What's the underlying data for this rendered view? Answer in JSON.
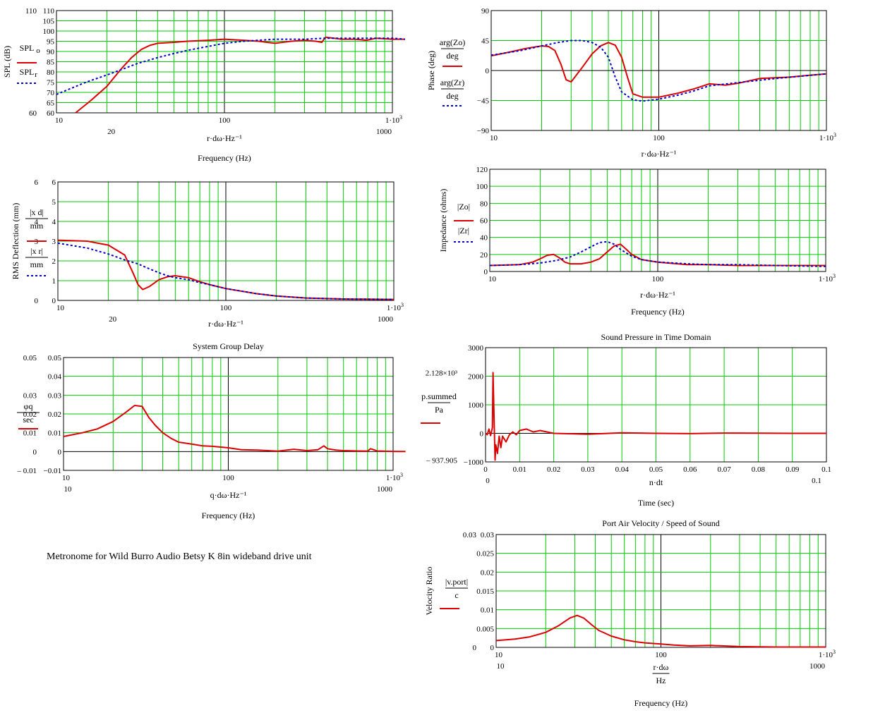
{
  "caption": "Metronome for Wild Burro Audio Betsy K 8in wideband drive unit",
  "colors": {
    "grid": "#00cc00",
    "axis": "#000000",
    "primary": "#dd0000",
    "secondary": "#0000cc",
    "background": "#ffffff"
  },
  "chart_data": [
    {
      "id": "spl",
      "type": "line",
      "title": "",
      "xlabel": "Frequency (Hz)",
      "ylabel": "SPL (dB)",
      "x_expr": "r·dω·Hz⁻¹",
      "xscale": "log",
      "xlim": [
        10,
        1000
      ],
      "ylim": [
        60,
        110
      ],
      "x_ticks": [
        "10",
        "100",
        "1·10³"
      ],
      "x_extra_ticks": [
        "20",
        "1000"
      ],
      "y_ticks": [
        "60",
        "65",
        "70",
        "75",
        "80",
        "85",
        "90",
        "95",
        "100",
        "105",
        "110"
      ],
      "y_extra_ticks": [
        "110",
        "60"
      ],
      "legend": [
        "SPL_o_r",
        "SPL_r"
      ],
      "series": [
        {
          "name": "SPL_o_r",
          "style": "solid",
          "x": [
            13,
            16,
            20,
            24,
            28,
            32,
            36,
            40,
            50,
            60,
            80,
            100,
            130,
            160,
            200,
            250,
            300,
            350,
            380,
            400,
            450,
            500,
            600,
            700,
            800,
            1000,
            1200
          ],
          "y": [
            60,
            66,
            73,
            81,
            87,
            91,
            93,
            94,
            94.5,
            95,
            95.5,
            96,
            95.5,
            95,
            94,
            95,
            95.5,
            95,
            94.5,
            97,
            96.5,
            96,
            96,
            95.5,
            96.5,
            96,
            96
          ]
        },
        {
          "name": "SPL_r",
          "style": "dotted",
          "x": [
            10,
            15,
            20,
            25,
            30,
            40,
            50,
            60,
            80,
            100,
            130,
            160,
            200,
            300,
            400,
            500,
            700,
            1000,
            1200
          ],
          "y": [
            69,
            75,
            78.5,
            81.5,
            84,
            87,
            89,
            90.5,
            92.5,
            94,
            95,
            95.5,
            96,
            96,
            96.5,
            96.5,
            96.5,
            96.5,
            96
          ]
        }
      ]
    },
    {
      "id": "phase",
      "type": "line",
      "title": "",
      "xlabel": "",
      "ylabel": "Phase (deg)",
      "x_expr": "r·dω·Hz⁻¹",
      "xscale": "log",
      "xlim": [
        10,
        1000
      ],
      "ylim": [
        -90,
        90
      ],
      "x_ticks": [
        "10",
        "100",
        "1·10³"
      ],
      "y_ticks": [
        "-90",
        "-45",
        "0",
        "45",
        "90"
      ],
      "legend": [
        "arg(Z_o_r)/deg",
        "arg(Z_r)/deg"
      ],
      "series": [
        {
          "name": "arg(Z_o_r)/deg",
          "style": "solid",
          "x": [
            10,
            13,
            16,
            20,
            22,
            24,
            26,
            28,
            30,
            35,
            40,
            45,
            50,
            55,
            60,
            65,
            70,
            80,
            100,
            130,
            160,
            200,
            250,
            300,
            400,
            600,
            800,
            1000
          ],
          "y": [
            22,
            28,
            33,
            37,
            36,
            30,
            10,
            -14,
            -17,
            5,
            25,
            37,
            42,
            38,
            20,
            -10,
            -35,
            -40,
            -40,
            -34,
            -28,
            -20,
            -22,
            -19,
            -12,
            -10,
            -7,
            -5
          ]
        },
        {
          "name": "arg(Z_r)/deg",
          "style": "dotted",
          "x": [
            10,
            15,
            20,
            25,
            30,
            35,
            40,
            45,
            50,
            55,
            60,
            70,
            80,
            100,
            130,
            160,
            200,
            300,
            500,
            1000
          ],
          "y": [
            23,
            30,
            37,
            42,
            45,
            45,
            42,
            35,
            20,
            -10,
            -32,
            -44,
            -46,
            -43,
            -37,
            -31,
            -23,
            -18,
            -12,
            -5
          ]
        }
      ]
    },
    {
      "id": "deflection",
      "type": "line",
      "title": "",
      "xlabel": "",
      "ylabel": "RMS Deflection (mm)",
      "x_expr": "r·dω·Hz⁻¹",
      "xscale": "log",
      "xlim": [
        10,
        1000
      ],
      "ylim": [
        0,
        6
      ],
      "x_ticks": [
        "10",
        "100",
        "1·10³"
      ],
      "x_extra_ticks": [
        "20",
        "1000"
      ],
      "y_ticks": [
        "0",
        "1",
        "2",
        "3",
        "4",
        "5",
        "6"
      ],
      "y_extra_ticks": [
        "6",
        "4",
        "3",
        "0"
      ],
      "legend": [
        "|x_d_r|/mm",
        "|x_r|/mm"
      ],
      "series": [
        {
          "name": "|x_d_r|/mm",
          "style": "solid",
          "x": [
            10,
            15,
            20,
            25,
            28,
            30,
            32,
            35,
            40,
            45,
            50,
            60,
            70,
            80,
            100,
            150,
            200,
            300,
            500,
            1000
          ],
          "y": [
            3.05,
            3.0,
            2.8,
            2.3,
            1.4,
            0.8,
            0.55,
            0.7,
            1.05,
            1.2,
            1.25,
            1.15,
            0.95,
            0.8,
            0.6,
            0.35,
            0.22,
            0.12,
            0.07,
            0.05
          ]
        },
        {
          "name": "|x_r|/mm",
          "style": "dotted",
          "x": [
            10,
            15,
            20,
            25,
            30,
            35,
            40,
            45,
            50,
            60,
            70,
            80,
            100,
            150,
            200,
            300,
            500,
            1000
          ],
          "y": [
            2.9,
            2.65,
            2.35,
            2.05,
            1.85,
            1.6,
            1.4,
            1.25,
            1.15,
            1.05,
            0.9,
            0.8,
            0.6,
            0.35,
            0.22,
            0.12,
            0.07,
            0.05
          ]
        }
      ]
    },
    {
      "id": "impedance",
      "type": "line",
      "title": "",
      "xlabel": "Frequency (Hz)",
      "ylabel": "Impedance (ohms)",
      "x_expr": "r·dω·Hz⁻¹",
      "xscale": "log",
      "xlim": [
        10,
        1000
      ],
      "ylim": [
        0,
        120
      ],
      "x_ticks": [
        "10",
        "100",
        "1·10³"
      ],
      "y_ticks": [
        "0",
        "20",
        "40",
        "60",
        "80",
        "100",
        "120"
      ],
      "legend": [
        "|Z_o_r|",
        "|Z_r|"
      ],
      "series": [
        {
          "name": "|Z_o_r|",
          "style": "solid",
          "x": [
            10,
            15,
            18,
            20,
            22,
            24,
            26,
            28,
            30,
            35,
            40,
            45,
            50,
            55,
            60,
            65,
            70,
            80,
            100,
            150,
            200,
            300,
            500,
            1000
          ],
          "y": [
            7,
            8,
            11,
            15,
            19,
            20,
            16,
            11,
            9,
            9,
            11,
            15,
            23,
            30,
            32,
            26,
            20,
            14,
            11,
            8,
            8,
            7,
            7,
            7
          ]
        },
        {
          "name": "|Z_r|",
          "style": "dotted",
          "x": [
            10,
            15,
            20,
            25,
            30,
            35,
            40,
            45,
            50,
            55,
            60,
            70,
            80,
            100,
            150,
            200,
            300,
            500,
            1000
          ],
          "y": [
            7,
            8,
            10,
            13,
            17,
            23,
            29,
            34,
            35,
            32,
            26,
            18,
            14,
            11,
            9,
            8,
            8,
            7,
            6
          ]
        }
      ]
    },
    {
      "id": "group-delay",
      "type": "line",
      "title": "System Group Delay",
      "xlabel": "Frequency (Hz)",
      "ylabel": "",
      "x_expr": "q·dω·Hz⁻¹",
      "xscale": "log",
      "xlim": [
        10,
        1000
      ],
      "ylim": [
        -0.01,
        0.05
      ],
      "x_ticks": [
        "10",
        "100",
        "1·10³"
      ],
      "x_extra_ticks": [
        "10",
        "1000"
      ],
      "y_ticks": [
        "-0.01",
        "0",
        "0.01",
        "0.02",
        "0.03",
        "0.04",
        "0.05"
      ],
      "y_extra_ticks": [
        "0.05",
        "0.03",
        "0.02",
        "0.01",
        "0",
        "– 0.01"
      ],
      "legend": [
        "φ_q/sec"
      ],
      "series": [
        {
          "name": "φ_q/sec",
          "style": "solid",
          "x": [
            10,
            13,
            16,
            20,
            24,
            27,
            30,
            33,
            36,
            40,
            45,
            50,
            60,
            70,
            80,
            100,
            120,
            150,
            200,
            250,
            300,
            350,
            380,
            400,
            450,
            500,
            600,
            700,
            730,
            800,
            1000,
            1200
          ],
          "y": [
            0.008,
            0.01,
            0.012,
            0.016,
            0.021,
            0.0245,
            0.024,
            0.018,
            0.014,
            0.01,
            0.007,
            0.005,
            0.004,
            0.003,
            0.0028,
            0.002,
            0.001,
            0.0008,
            0.0002,
            0.0012,
            0.0005,
            0.001,
            0.003,
            0.0015,
            0.0008,
            0.0005,
            0.0003,
            0.0002,
            0.0015,
            0.0003,
            0.0001,
            0
          ]
        }
      ]
    },
    {
      "id": "time-domain",
      "type": "line",
      "title": "Sound Pressure in Time Domain",
      "xlabel": "Time (sec)",
      "ylabel": "",
      "x_expr": "n·dt",
      "xscale": "linear",
      "xlim": [
        0,
        0.1
      ],
      "ylim": [
        -1000,
        3000
      ],
      "x_ticks": [
        "0",
        "0.01",
        "0.02",
        "0.03",
        "0.04",
        "0.05",
        "0.06",
        "0.07",
        "0.08",
        "0.09",
        "0.1"
      ],
      "x_extra_ticks": [
        "0",
        "0.1"
      ],
      "y_ticks": [
        "-1000",
        "0",
        "1000",
        "2000",
        "3000"
      ],
      "y_extra_ticks": [
        "2.128×10³",
        "– 937.905"
      ],
      "legend": [
        "p_summed_n/Pa"
      ],
      "series": [
        {
          "name": "p_summed_n/Pa",
          "style": "solid",
          "x": [
            0,
            0.0005,
            0.001,
            0.0015,
            0.002,
            0.0022,
            0.0025,
            0.0028,
            0.003,
            0.0035,
            0.004,
            0.0045,
            0.005,
            0.006,
            0.007,
            0.008,
            0.009,
            0.01,
            0.012,
            0.014,
            0.016,
            0.02,
            0.03,
            0.04,
            0.05,
            0.06,
            0.07,
            0.08,
            0.09,
            0.1
          ],
          "y": [
            0,
            -50,
            150,
            -80,
            200,
            2128,
            500,
            -938,
            -400,
            -700,
            -100,
            -500,
            -100,
            -300,
            -50,
            50,
            -50,
            100,
            150,
            50,
            100,
            0,
            -30,
            20,
            0,
            -10,
            10,
            5,
            0,
            0
          ]
        }
      ]
    },
    {
      "id": "port-velocity",
      "type": "line",
      "title": "Port Air Velocity / Speed of Sound",
      "xlabel": "Frequency (Hz)",
      "ylabel": "Velocity Ratio",
      "x_expr": "r·dω / Hz",
      "xscale": "log",
      "xlim": [
        10,
        1000
      ],
      "ylim": [
        0,
        0.03
      ],
      "x_ticks": [
        "10",
        "100",
        "1·10³"
      ],
      "x_extra_ticks": [
        "10",
        "1000"
      ],
      "y_ticks": [
        "0",
        "0.005",
        "0.01",
        "0.015",
        "0.02",
        "0.025",
        "0.03"
      ],
      "y_extra_ticks": [
        "0.03",
        "0"
      ],
      "legend": [
        "|v_port_r|/c"
      ],
      "series": [
        {
          "name": "|v_port_r|/c",
          "style": "solid",
          "x": [
            10,
            13,
            16,
            20,
            24,
            28,
            31,
            34,
            38,
            42,
            50,
            60,
            70,
            80,
            100,
            120,
            150,
            200,
            300,
            500,
            1000
          ],
          "y": [
            0.0018,
            0.0022,
            0.0028,
            0.004,
            0.0058,
            0.0078,
            0.0085,
            0.0078,
            0.006,
            0.0045,
            0.003,
            0.002,
            0.0015,
            0.0012,
            0.0009,
            0.0006,
            0.0004,
            0.0005,
            0.0002,
            0.0001,
            0.0001
          ]
        }
      ]
    }
  ]
}
